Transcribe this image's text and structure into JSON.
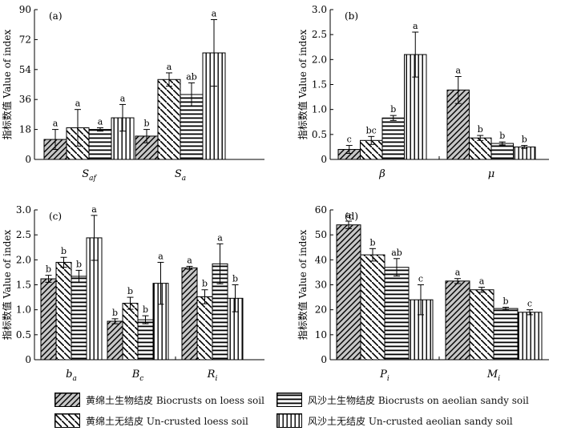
{
  "y_axis_label": "指标数值 Value of index",
  "series_styles": [
    "diag",
    "diag-inv",
    "horiz",
    "vert"
  ],
  "legend": [
    {
      "label": "黄绵土生物结皮 Biocrusts on loess soil",
      "style": "diag"
    },
    {
      "label": "风沙土生物结皮 Biocrusts on aeolian sandy soil",
      "style": "horiz"
    },
    {
      "label": "黄绵土无结皮 Un-crusted loess soil",
      "style": "diag-inv"
    },
    {
      "label": "风沙土无结皮 Un-crusted aeolian sandy soil",
      "style": "vert"
    }
  ],
  "chart_data": [
    {
      "type": "bar",
      "panel": "(a)",
      "ylim": [
        0,
        90
      ],
      "yticks": [
        0,
        18,
        36,
        54,
        72,
        90
      ],
      "tick_labels": [
        "0",
        "18",
        "36",
        "54",
        "72",
        "90"
      ],
      "groups": [
        {
          "main": "S",
          "sub": "af",
          "values": [
            12,
            19,
            18,
            25
          ],
          "errors": [
            6,
            11,
            1,
            8
          ],
          "letters": [
            "a",
            "a",
            "a",
            "a"
          ]
        },
        {
          "main": "S",
          "sub": "a",
          "values": [
            14,
            48,
            39,
            64
          ],
          "errors": [
            4,
            4,
            7,
            20
          ],
          "letters": [
            "b",
            "a",
            "ab",
            "a"
          ]
        }
      ]
    },
    {
      "type": "bar",
      "panel": "(b)",
      "ylim": [
        0,
        3.0
      ],
      "yticks": [
        0,
        0.5,
        1.0,
        1.5,
        2.0,
        2.5,
        3.0
      ],
      "tick_labels": [
        "0",
        "0.5",
        "1.0",
        "1.5",
        "2.0",
        "2.5",
        "3.0"
      ],
      "groups": [
        {
          "main": "β",
          "sub": "",
          "values": [
            0.2,
            0.38,
            0.83,
            2.1
          ],
          "errors": [
            0.08,
            0.08,
            0.05,
            0.45
          ],
          "letters": [
            "c",
            "bc",
            "b",
            "a"
          ]
        },
        {
          "main": "μ",
          "sub": "",
          "values": [
            1.39,
            0.43,
            0.32,
            0.25
          ],
          "errors": [
            0.27,
            0.05,
            0.03,
            0.03
          ],
          "letters": [
            "a",
            "b",
            "b",
            "b"
          ]
        }
      ]
    },
    {
      "type": "bar",
      "panel": "(c)",
      "ylim": [
        0,
        3.0
      ],
      "yticks": [
        0,
        0.5,
        1.0,
        1.5,
        2.0,
        2.5,
        3.0
      ],
      "tick_labels": [
        "0",
        "0.5",
        "1.0",
        "1.5",
        "2.0",
        "2.5",
        "3.0"
      ],
      "groups": [
        {
          "main": "b",
          "sub": "a",
          "values": [
            1.62,
            1.95,
            1.67,
            2.44
          ],
          "errors": [
            0.07,
            0.1,
            0.12,
            0.45
          ],
          "letters": [
            "b",
            "b",
            "b",
            "a"
          ]
        },
        {
          "main": "B",
          "sub": "c",
          "values": [
            0.77,
            1.13,
            0.8,
            1.53
          ],
          "errors": [
            0.05,
            0.12,
            0.08,
            0.42
          ],
          "letters": [
            "b",
            "b",
            "b",
            "a"
          ]
        },
        {
          "main": "R",
          "sub": "i",
          "values": [
            1.84,
            1.26,
            1.92,
            1.23
          ],
          "errors": [
            0.03,
            0.14,
            0.4,
            0.27
          ],
          "letters": [
            "a",
            "b",
            "a",
            "b"
          ]
        }
      ]
    },
    {
      "type": "bar",
      "panel": "(d)",
      "ylim": [
        0,
        60
      ],
      "yticks": [
        0,
        10,
        20,
        30,
        40,
        50,
        60
      ],
      "tick_labels": [
        "0",
        "10",
        "20",
        "30",
        "40",
        "50",
        "60"
      ],
      "groups": [
        {
          "main": "P",
          "sub": "i",
          "values": [
            54,
            42,
            37,
            24
          ],
          "errors": [
            1.5,
            2.5,
            3.5,
            6
          ],
          "letters": [
            "a",
            "b",
            "ab",
            "c"
          ]
        },
        {
          "main": "M",
          "sub": "i",
          "values": [
            31.5,
            28,
            20.5,
            19
          ],
          "errors": [
            1,
            1,
            0.5,
            1
          ],
          "letters": [
            "a",
            "a",
            "b",
            "c"
          ]
        }
      ]
    }
  ]
}
